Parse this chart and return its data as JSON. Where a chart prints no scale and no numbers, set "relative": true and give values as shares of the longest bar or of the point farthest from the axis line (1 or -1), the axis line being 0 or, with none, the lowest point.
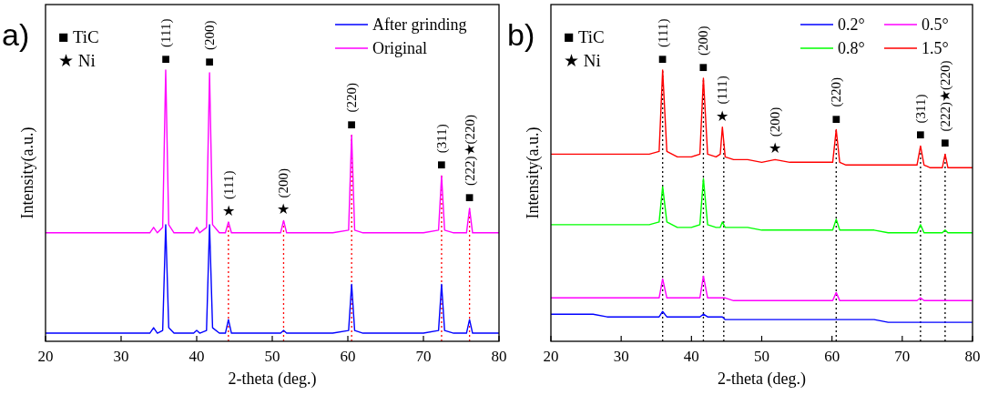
{
  "chart_data": [
    {
      "type": "line",
      "title": "a)",
      "xlabel": "2-theta (deg.)",
      "ylabel": "Intensity(a.u.)",
      "relative": true,
      "xlim": [
        20,
        80
      ],
      "xticks": [
        20,
        30,
        40,
        50,
        60,
        70,
        80
      ],
      "legend": "top right",
      "x": [
        20,
        22,
        24,
        26,
        28,
        30,
        32,
        33.8,
        34.3,
        34.8,
        35.5,
        35.9,
        36.3,
        37,
        38,
        39.6,
        40,
        40.4,
        41.3,
        41.7,
        42.1,
        43,
        43.8,
        44.2,
        44.6,
        46,
        48,
        50,
        51.1,
        51.5,
        51.9,
        54,
        56,
        58,
        60.1,
        60.5,
        60.9,
        62,
        64,
        66,
        68,
        70,
        72,
        72.4,
        72.8,
        74,
        75.7,
        76.1,
        76.5,
        78,
        80
      ],
      "series": [
        {
          "name": "After grinding",
          "color": "#0000ff",
          "values": [
            0.03,
            0.03,
            0.03,
            0.03,
            0.03,
            0.03,
            0.03,
            0.03,
            0.05,
            0.03,
            0.04,
            0.43,
            0.05,
            0.03,
            0.03,
            0.03,
            0.04,
            0.03,
            0.04,
            0.43,
            0.05,
            0.03,
            0.03,
            0.08,
            0.03,
            0.03,
            0.03,
            0.03,
            0.03,
            0.04,
            0.03,
            0.03,
            0.03,
            0.03,
            0.04,
            0.21,
            0.04,
            0.03,
            0.03,
            0.03,
            0.03,
            0.03,
            0.04,
            0.21,
            0.04,
            0.03,
            0.03,
            0.08,
            0.03,
            0.03,
            0.03
          ]
        },
        {
          "name": "Original",
          "color": "#ff00ff",
          "values": [
            0.4,
            0.4,
            0.4,
            0.4,
            0.4,
            0.4,
            0.4,
            0.4,
            0.42,
            0.4,
            0.42,
            1.0,
            0.43,
            0.4,
            0.4,
            0.4,
            0.42,
            0.4,
            0.42,
            0.99,
            0.43,
            0.4,
            0.4,
            0.44,
            0.4,
            0.4,
            0.4,
            0.4,
            0.4,
            0.445,
            0.4,
            0.4,
            0.4,
            0.4,
            0.41,
            0.76,
            0.41,
            0.4,
            0.4,
            0.4,
            0.4,
            0.4,
            0.41,
            0.61,
            0.41,
            0.4,
            0.4,
            0.49,
            0.4,
            0.4,
            0.4
          ]
        }
      ],
      "ref_lines": [
        {
          "axis": "x",
          "value": 44.2,
          "color": "#ff0000",
          "line_style": "dotted"
        },
        {
          "axis": "x",
          "value": 51.5,
          "color": "#ff0000",
          "line_style": "dotted"
        },
        {
          "axis": "x",
          "value": 60.5,
          "color": "#ff0000",
          "line_style": "dotted"
        },
        {
          "axis": "x",
          "value": 72.4,
          "color": "#ff0000",
          "line_style": "dotted"
        },
        {
          "axis": "x",
          "value": 76.1,
          "color": "#ff0000",
          "line_style": "dotted"
        }
      ],
      "annotations": [
        "■ TiC",
        "★ Ni",
        {
          "text": "■",
          "x": 35.9,
          "y": 1.0
        },
        {
          "text": "(111)",
          "x": 35.9,
          "y": 1.0
        },
        {
          "text": "■",
          "x": 41.7,
          "y": 0.99
        },
        {
          "text": "(200)",
          "x": 41.7,
          "y": 0.99
        },
        {
          "text": "★",
          "x": 44.2,
          "y": 0.44
        },
        {
          "text": "(111)",
          "x": 44.2,
          "y": 0.44
        },
        {
          "text": "★",
          "x": 51.5,
          "y": 0.445
        },
        {
          "text": "(200)",
          "x": 51.5,
          "y": 0.445
        },
        {
          "text": "■",
          "x": 60.5,
          "y": 0.76
        },
        {
          "text": "(220)",
          "x": 60.5,
          "y": 0.76
        },
        {
          "text": "■",
          "x": 72.4,
          "y": 0.61
        },
        {
          "text": "(311)",
          "x": 72.4,
          "y": 0.61
        },
        {
          "text": "■",
          "x": 76.1,
          "y": 0.49
        },
        {
          "text": "(222)★(220)",
          "x": 76.1,
          "y": 0.49
        }
      ]
    },
    {
      "type": "line",
      "title": "b)",
      "xlabel": "2-theta (deg.)",
      "ylabel": "Intensity(a.u.)",
      "relative": true,
      "xlim": [
        20,
        80
      ],
      "xticks": [
        20,
        30,
        40,
        50,
        60,
        70,
        80
      ],
      "legend": "top right",
      "x": [
        20,
        22,
        24,
        26,
        28,
        30,
        32,
        34,
        35.4,
        35.9,
        36.5,
        38,
        40,
        41.2,
        41.7,
        42.3,
        43.5,
        44.1,
        44.4,
        44.8,
        46,
        48,
        50,
        51.9,
        54,
        56,
        58,
        60.1,
        60.6,
        61.1,
        62,
        64,
        66,
        68,
        70,
        72.1,
        72.6,
        73.1,
        74,
        75.7,
        76.1,
        76.5,
        78,
        80
      ],
      "series": [
        {
          "name": "0.2°",
          "color": "#0000ff",
          "values": [
            0.1,
            0.1,
            0.1,
            0.1,
            0.09,
            0.09,
            0.09,
            0.09,
            0.09,
            0.11,
            0.09,
            0.09,
            0.09,
            0.09,
            0.1,
            0.09,
            0.09,
            0.09,
            0.09,
            0.08,
            0.08,
            0.08,
            0.08,
            0.08,
            0.08,
            0.08,
            0.08,
            0.08,
            0.08,
            0.08,
            0.08,
            0.08,
            0.08,
            0.07,
            0.07,
            0.07,
            0.07,
            0.07,
            0.07,
            0.07,
            0.07,
            0.07,
            0.07,
            0.07
          ]
        },
        {
          "name": "0.5°",
          "color": "#ff00ff",
          "values": [
            0.16,
            0.16,
            0.16,
            0.16,
            0.16,
            0.16,
            0.16,
            0.16,
            0.16,
            0.23,
            0.16,
            0.16,
            0.16,
            0.16,
            0.24,
            0.16,
            0.16,
            0.16,
            0.16,
            0.16,
            0.15,
            0.15,
            0.15,
            0.15,
            0.15,
            0.15,
            0.15,
            0.15,
            0.18,
            0.15,
            0.15,
            0.15,
            0.15,
            0.15,
            0.15,
            0.15,
            0.16,
            0.15,
            0.15,
            0.15,
            0.15,
            0.15,
            0.15,
            0.15
          ]
        },
        {
          "name": "0.8°",
          "color": "#00ff00",
          "values": [
            0.43,
            0.43,
            0.43,
            0.43,
            0.43,
            0.43,
            0.43,
            0.43,
            0.44,
            0.57,
            0.44,
            0.42,
            0.42,
            0.43,
            0.6,
            0.43,
            0.42,
            0.42,
            0.44,
            0.42,
            0.42,
            0.42,
            0.41,
            0.41,
            0.41,
            0.41,
            0.41,
            0.41,
            0.45,
            0.41,
            0.41,
            0.41,
            0.41,
            0.4,
            0.4,
            0.4,
            0.43,
            0.4,
            0.4,
            0.4,
            0.41,
            0.4,
            0.4,
            0.4
          ]
        },
        {
          "name": "1.5°",
          "color": "#ff0000",
          "values": [
            0.69,
            0.69,
            0.69,
            0.69,
            0.69,
            0.69,
            0.69,
            0.69,
            0.7,
            1.0,
            0.7,
            0.68,
            0.68,
            0.69,
            0.97,
            0.69,
            0.68,
            0.69,
            0.79,
            0.68,
            0.67,
            0.67,
            0.66,
            0.67,
            0.66,
            0.66,
            0.66,
            0.66,
            0.78,
            0.66,
            0.65,
            0.65,
            0.65,
            0.65,
            0.65,
            0.65,
            0.72,
            0.65,
            0.64,
            0.64,
            0.69,
            0.64,
            0.64,
            0.64
          ]
        }
      ],
      "ref_lines": [
        {
          "axis": "x",
          "value": 35.9,
          "color": "#000000",
          "line_style": "dotted"
        },
        {
          "axis": "x",
          "value": 41.7,
          "color": "#000000",
          "line_style": "dotted"
        },
        {
          "axis": "x",
          "value": 44.6,
          "color": "#000000",
          "line_style": "dotted"
        },
        {
          "axis": "x",
          "value": 60.6,
          "color": "#000000",
          "line_style": "dotted"
        },
        {
          "axis": "x",
          "value": 72.6,
          "color": "#000000",
          "line_style": "dotted"
        },
        {
          "axis": "x",
          "value": 76.1,
          "color": "#000000",
          "line_style": "dotted"
        }
      ],
      "annotations": [
        "■ TiC",
        "★ Ni",
        {
          "text": "■",
          "x": 35.9,
          "y": 1.0
        },
        {
          "text": "(111)",
          "x": 35.9,
          "y": 1.0
        },
        {
          "text": "■",
          "x": 41.7,
          "y": 0.97
        },
        {
          "text": "(200)",
          "x": 41.7,
          "y": 0.97
        },
        {
          "text": "★",
          "x": 44.4,
          "y": 0.79
        },
        {
          "text": "(111)",
          "x": 44.4,
          "y": 0.79
        },
        {
          "text": "★",
          "x": 51.9,
          "y": 0.67
        },
        {
          "text": "(200)",
          "x": 51.9,
          "y": 0.67
        },
        {
          "text": "■",
          "x": 60.6,
          "y": 0.78
        },
        {
          "text": "(220)",
          "x": 60.6,
          "y": 0.78
        },
        {
          "text": "■",
          "x": 72.6,
          "y": 0.72
        },
        {
          "text": "(311)",
          "x": 72.6,
          "y": 0.72
        },
        {
          "text": "■",
          "x": 76.1,
          "y": 0.69
        },
        {
          "text": "(222)★(220)",
          "x": 76.1,
          "y": 0.69
        }
      ]
    }
  ]
}
